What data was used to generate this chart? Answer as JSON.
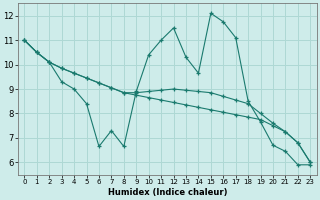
{
  "xlabel": "Humidex (Indice chaleur)",
  "bg_color": "#ceecea",
  "grid_color": "#aed8d4",
  "line_color": "#1a7a6e",
  "xlim": [
    -0.5,
    23.5
  ],
  "ylim": [
    5.5,
    12.5
  ],
  "yticks": [
    6,
    7,
    8,
    9,
    10,
    11,
    12
  ],
  "xticks": [
    0,
    1,
    2,
    3,
    4,
    5,
    6,
    7,
    8,
    9,
    10,
    11,
    12,
    13,
    14,
    15,
    16,
    17,
    18,
    19,
    20,
    21,
    22,
    23
  ],
  "series": [
    [
      11.0,
      10.5,
      10.1,
      9.3,
      9.0,
      8.4,
      6.65,
      7.3,
      6.65,
      8.9,
      10.4,
      11.0,
      11.5,
      10.3,
      9.65,
      12.1,
      11.75,
      11.1,
      8.5,
      7.65,
      6.7,
      6.45,
      5.9,
      5.9
    ],
    [
      11.0,
      10.5,
      10.1,
      9.85,
      9.65,
      9.45,
      9.25,
      9.05,
      8.85,
      8.75,
      8.65,
      8.55,
      8.45,
      8.35,
      8.25,
      8.15,
      8.05,
      7.95,
      7.85,
      7.75,
      7.5,
      7.25,
      6.8,
      6.0
    ],
    [
      11.0,
      10.5,
      10.1,
      9.85,
      9.65,
      9.45,
      9.25,
      9.05,
      8.85,
      8.85,
      8.9,
      8.95,
      9.0,
      8.95,
      8.9,
      8.85,
      8.7,
      8.55,
      8.4,
      8.0,
      7.6,
      7.25,
      6.8,
      6.0
    ]
  ]
}
